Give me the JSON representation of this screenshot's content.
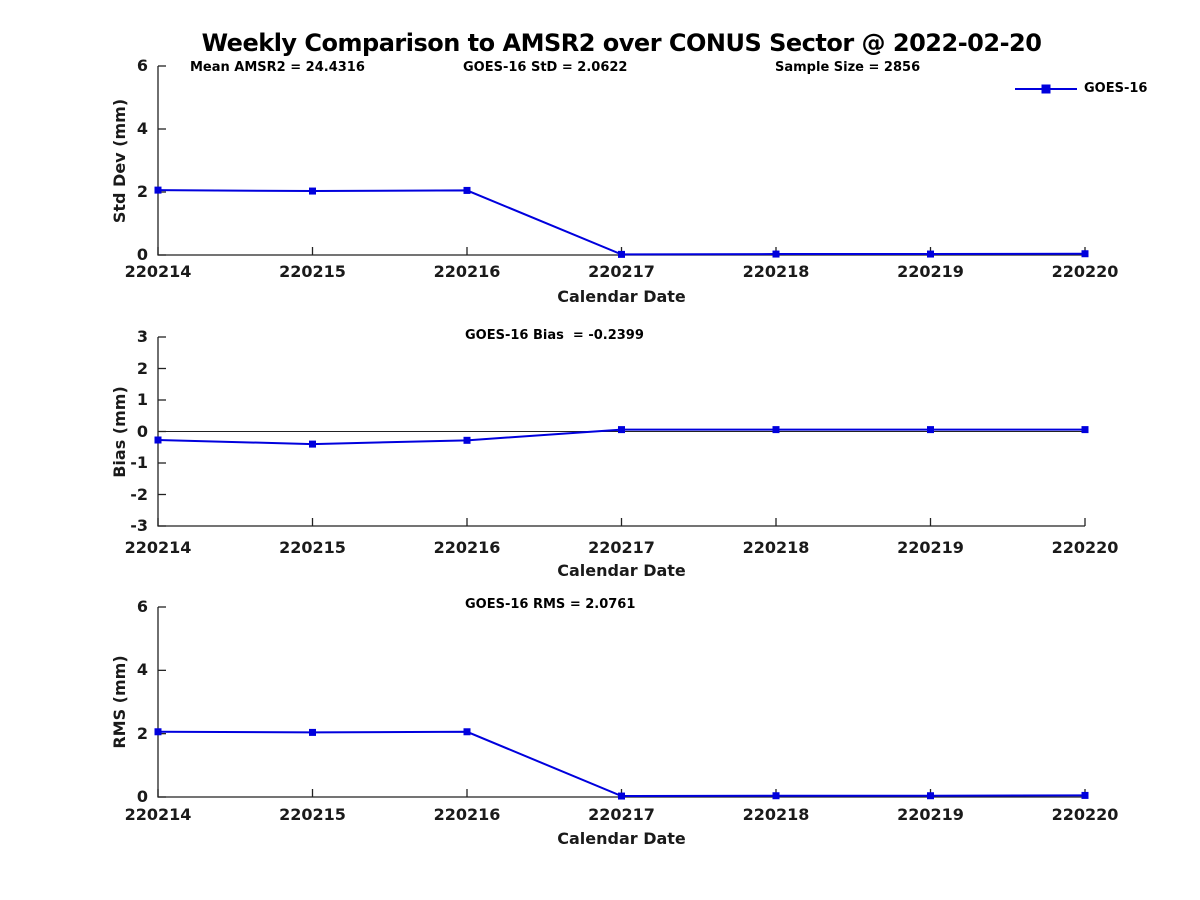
{
  "title": "Weekly Comparison to AMSR2 over CONUS Sector @ 2022-02-20",
  "legend": {
    "label": "GOES-16",
    "color": "#0000dd"
  },
  "axis_color": "#222222",
  "chart_data": [
    {
      "type": "line",
      "name": "std-dev-panel",
      "ylabel": "Std Dev (mm)",
      "xlabel": "Calendar Date",
      "categories": [
        "220214",
        "220215",
        "220216",
        "220217",
        "220218",
        "220219",
        "220220"
      ],
      "ylim": [
        0,
        6
      ],
      "yticks": [
        0,
        2,
        4,
        6
      ],
      "grid": false,
      "legend_position": "top-right",
      "annotations": [
        "Mean AMSR2 = 24.4316",
        "GOES-16 StD = 2.0622",
        "Sample Size = 2856"
      ],
      "series": [
        {
          "name": "GOES-16",
          "values": [
            2.06,
            2.03,
            2.05,
            0.02,
            0.03,
            0.03,
            0.04
          ]
        }
      ]
    },
    {
      "type": "line",
      "name": "bias-panel",
      "ylabel": "Bias (mm)",
      "xlabel": "Calendar Date",
      "categories": [
        "220214",
        "220215",
        "220216",
        "220217",
        "220218",
        "220219",
        "220220"
      ],
      "ylim": [
        -3,
        3
      ],
      "yticks": [
        3,
        2,
        1,
        0,
        -1,
        -2,
        -3
      ],
      "grid": false,
      "zero_line": true,
      "annotations": [
        "GOES-16 Bias  = -0.2399"
      ],
      "series": [
        {
          "name": "GOES-16",
          "values": [
            -0.27,
            -0.4,
            -0.28,
            0.06,
            0.06,
            0.06,
            0.06
          ]
        }
      ]
    },
    {
      "type": "line",
      "name": "rms-panel",
      "ylabel": "RMS (mm)",
      "xlabel": "Calendar Date",
      "categories": [
        "220214",
        "220215",
        "220216",
        "220217",
        "220218",
        "220219",
        "220220"
      ],
      "ylim": [
        0,
        6
      ],
      "yticks": [
        0,
        2,
        4,
        6
      ],
      "grid": false,
      "annotations": [
        "GOES-16 RMS = 2.0761"
      ],
      "series": [
        {
          "name": "GOES-16",
          "values": [
            2.06,
            2.04,
            2.06,
            0.03,
            0.04,
            0.04,
            0.05
          ]
        }
      ]
    }
  ]
}
